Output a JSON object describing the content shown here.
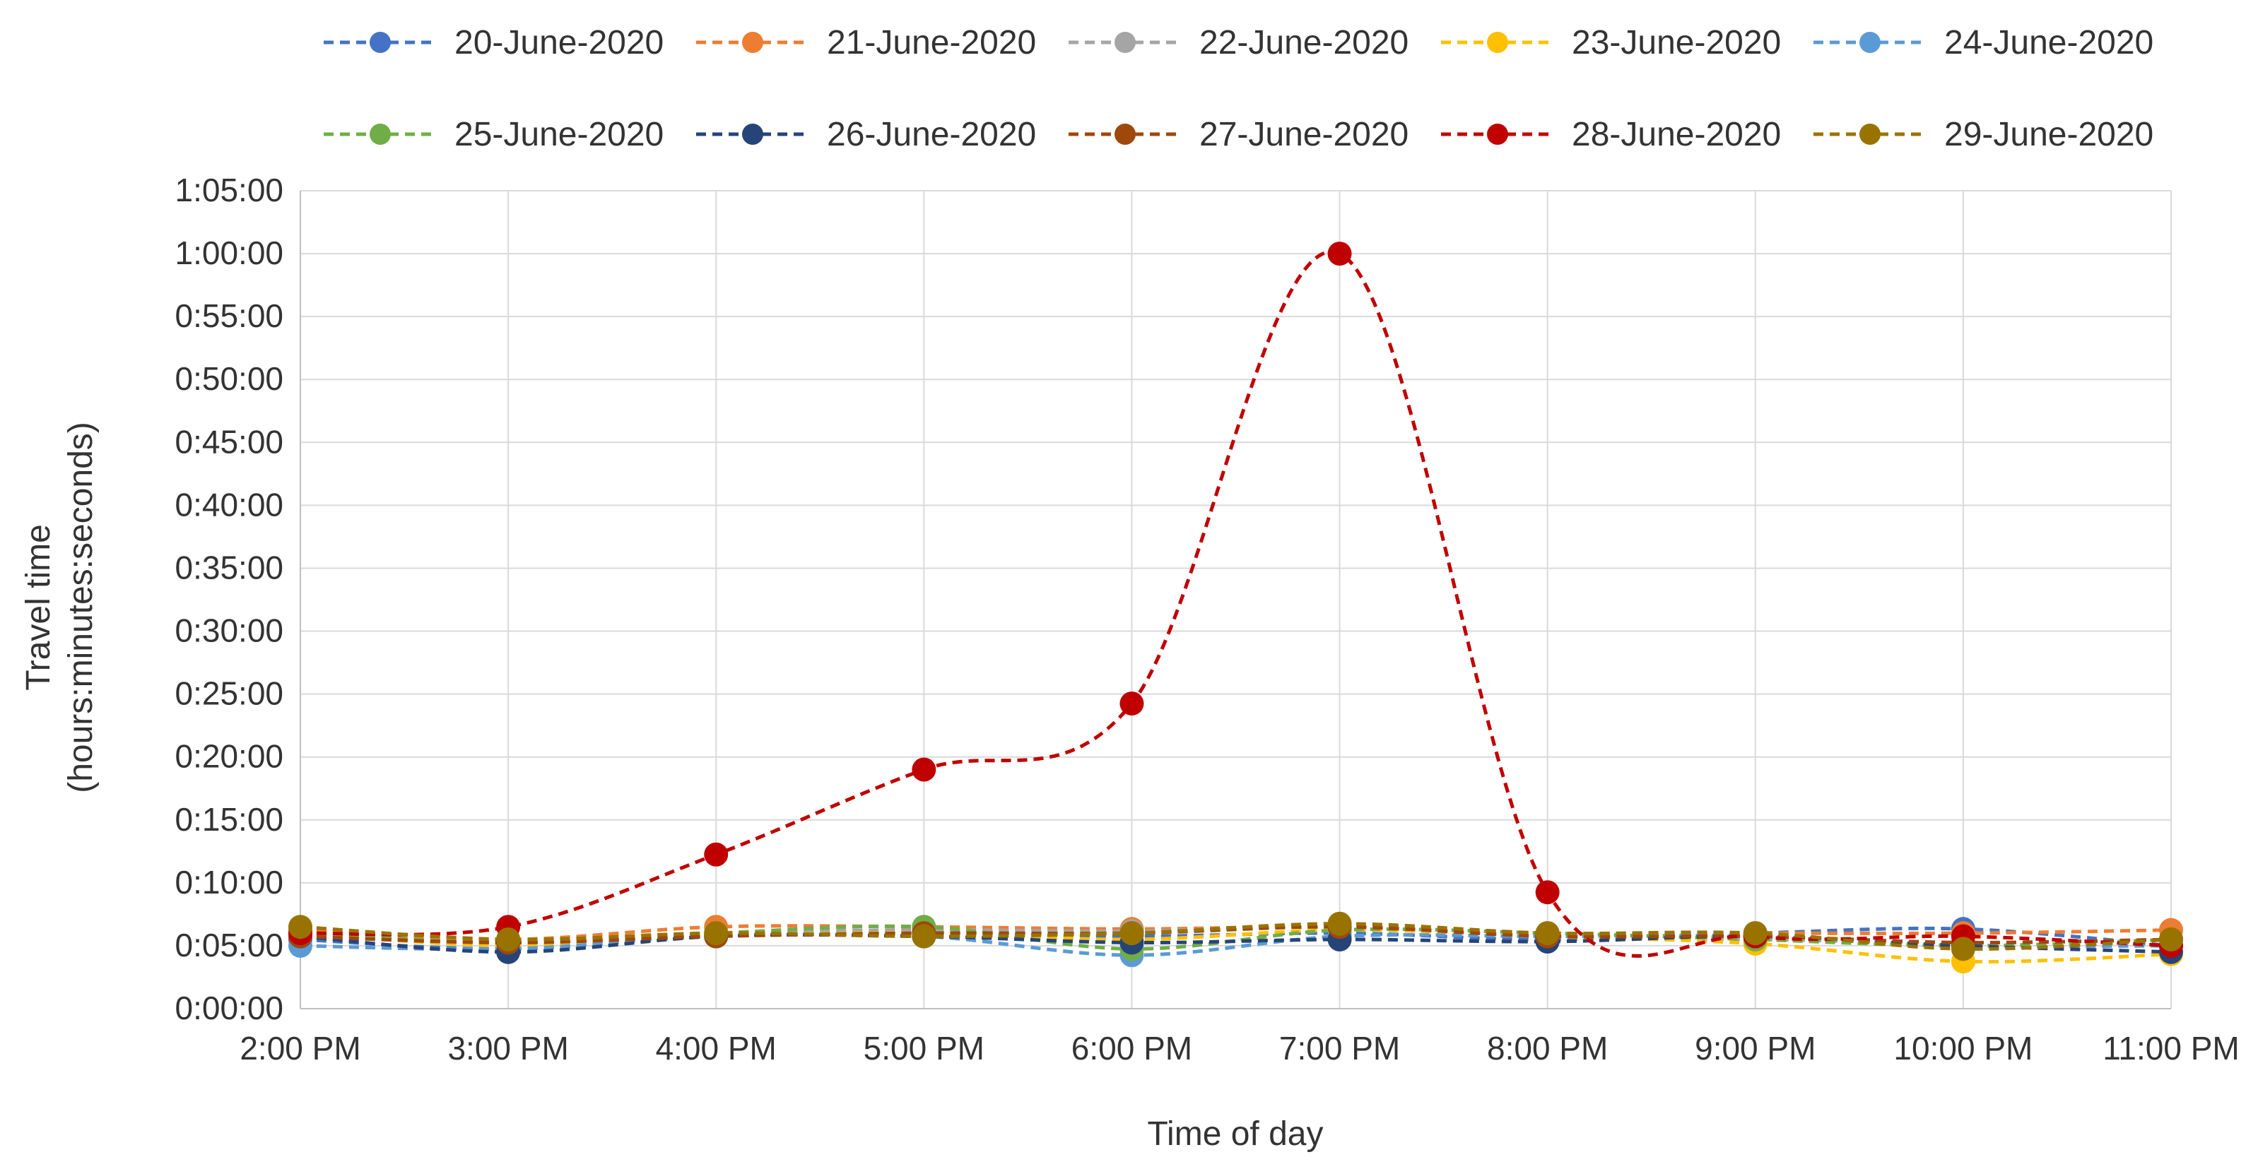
{
  "chart_data": {
    "type": "line",
    "title": "",
    "xlabel": "Time of day",
    "ylabel": [
      "Travel time",
      "(hours:minutes:seconds)"
    ],
    "x": [
      "2:00 PM",
      "3:00 PM",
      "4:00 PM",
      "5:00 PM",
      "6:00 PM",
      "7:00 PM",
      "8:00 PM",
      "9:00 PM",
      "10:00 PM",
      "11:00 PM"
    ],
    "yticks": [
      "0:00:00",
      "0:05:00",
      "0:10:00",
      "0:15:00",
      "0:20:00",
      "0:25:00",
      "0:30:00",
      "0:35:00",
      "0:40:00",
      "0:45:00",
      "0:50:00",
      "0:55:00",
      "1:00:00",
      "1:05:00"
    ],
    "ylim_seconds": [
      0,
      3900
    ],
    "grid": true,
    "legend_position": "top",
    "y_unit": "seconds",
    "series": [
      {
        "name": "20-June-2020",
        "color": "#4472C4",
        "values": [
          330,
          285,
          350,
          360,
          345,
          360,
          330,
          360,
          380,
          300
        ]
      },
      {
        "name": "21-June-2020",
        "color": "#ED7D31",
        "values": [
          375,
          330,
          390,
          390,
          380,
          390,
          360,
          360,
          360,
          375
        ]
      },
      {
        "name": "22-June-2020",
        "color": "#A5A5A5",
        "values": [
          360,
          315,
          360,
          375,
          370,
          390,
          345,
          330,
          315,
          330
        ]
      },
      {
        "name": "23-June-2020",
        "color": "#FFC000",
        "values": [
          360,
          300,
          345,
          360,
          330,
          375,
          345,
          310,
          225,
          260
        ]
      },
      {
        "name": "24-June-2020",
        "color": "#5B9BD5",
        "values": [
          300,
          285,
          345,
          345,
          255,
          345,
          345,
          345,
          300,
          300
        ]
      },
      {
        "name": "25-June-2020",
        "color": "#70AD47",
        "values": [
          360,
          315,
          360,
          390,
          285,
          375,
          360,
          330,
          300,
          330
        ]
      },
      {
        "name": "26-June-2020",
        "color": "#264478",
        "values": [
          345,
          270,
          345,
          345,
          315,
          330,
          320,
          345,
          300,
          270
        ]
      },
      {
        "name": "27-June-2020",
        "color": "#9E480E",
        "values": [
          345,
          315,
          345,
          360,
          360,
          390,
          345,
          345,
          315,
          330
        ]
      },
      {
        "name": "28-June-2020",
        "color": "#C00000",
        "values": [
          360,
          390,
          735,
          1140,
          1455,
          3600,
          555,
          345,
          345,
          300
        ]
      },
      {
        "name": "29-June-2020",
        "color": "#997300",
        "values": [
          390,
          330,
          360,
          345,
          360,
          405,
          360,
          360,
          285,
          330
        ]
      }
    ]
  }
}
